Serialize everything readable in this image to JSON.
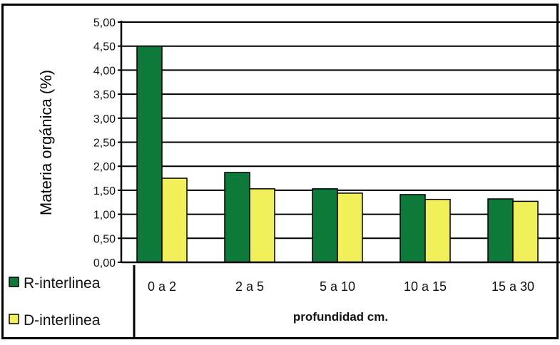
{
  "chart_data": {
    "type": "bar",
    "title": "",
    "xlabel": "profundidad cm.",
    "ylabel": "Materia orgánica (%)",
    "ylim": [
      0,
      5
    ],
    "yticks": [
      "0,00",
      "0,50",
      "1,00",
      "1,50",
      "2,00",
      "2,50",
      "3,00",
      "3,50",
      "4,00",
      "4,50",
      "5,00"
    ],
    "categories": [
      "0 a 2",
      "2 a 5",
      "5 a 10",
      "10 a 15",
      "15 a 30"
    ],
    "grid": true,
    "legend_position": "bottom-left",
    "series": [
      {
        "name": "R-interlinea",
        "color": "#0e7a3a",
        "values": [
          4.5,
          1.87,
          1.53,
          1.41,
          1.32
        ]
      },
      {
        "name": "D-interlinea",
        "color": "#f2f05a",
        "values": [
          1.75,
          1.53,
          1.44,
          1.31,
          1.27
        ]
      }
    ]
  }
}
